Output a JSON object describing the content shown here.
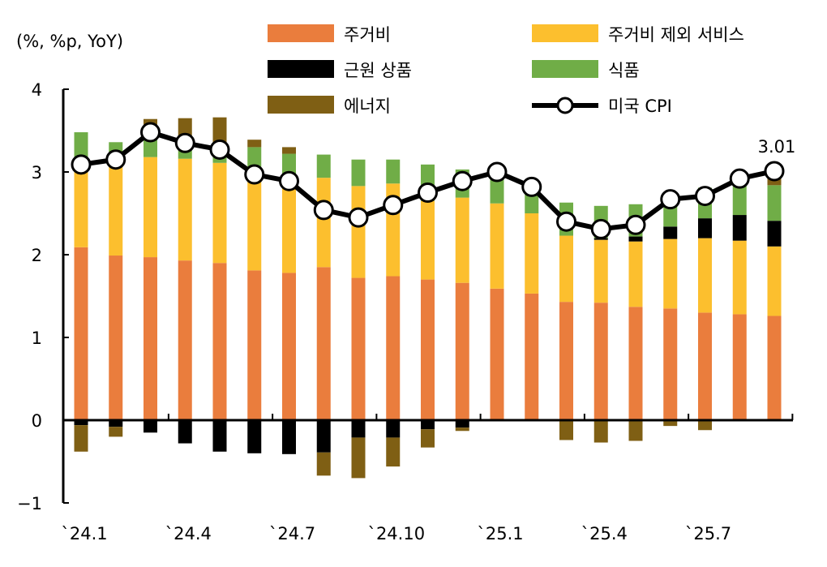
{
  "chart_data": {
    "type": "bar",
    "stacked": true,
    "ylabel": "(%, %p, YoY)",
    "ylim": [
      -1,
      4
    ],
    "yticks": [
      "4",
      "3",
      "2",
      "1",
      "0",
      "−1"
    ],
    "ytick_values": [
      4,
      3,
      2,
      1,
      0,
      -1
    ],
    "grid": false,
    "legend_position": "top",
    "categories": [
      "24.1",
      "24.2",
      "24.3",
      "24.4",
      "24.5",
      "24.6",
      "24.7",
      "24.8",
      "24.9",
      "24.10",
      "24.11",
      "24.12",
      "25.1",
      "25.2",
      "25.3",
      "25.4",
      "25.5",
      "25.6",
      "25.7",
      "25.8",
      "25.9"
    ],
    "xtick_labels": [
      "`24.1",
      "`24.4",
      "`24.7",
      "`24.10",
      "`25.1",
      "`25.4",
      "`25.7"
    ],
    "series": [
      {
        "name": "주거비",
        "color": "#EA7D3D",
        "values": [
          2.09,
          1.99,
          1.97,
          1.93,
          1.9,
          1.81,
          1.78,
          1.85,
          1.72,
          1.74,
          1.7,
          1.66,
          1.59,
          1.53,
          1.43,
          1.42,
          1.37,
          1.35,
          1.3,
          1.28,
          1.26
        ]
      },
      {
        "name": "주거비 제외 서비스",
        "color": "#FCBF2E",
        "values": [
          0.91,
          1.11,
          1.21,
          1.23,
          1.21,
          1.2,
          1.12,
          1.08,
          1.11,
          1.12,
          0.95,
          1.03,
          1.03,
          0.97,
          0.8,
          0.76,
          0.79,
          0.84,
          0.9,
          0.89,
          0.84
        ]
      },
      {
        "name": "근원 상품",
        "color": "#000000",
        "values": [
          -0.06,
          -0.08,
          -0.15,
          -0.28,
          -0.38,
          -0.4,
          -0.41,
          -0.39,
          -0.21,
          -0.21,
          -0.11,
          -0.09,
          0,
          0,
          0,
          0.02,
          0.06,
          0.15,
          0.24,
          0.31,
          0.31
        ]
      },
      {
        "name": "식품",
        "color": "#70AD47",
        "values": [
          0.48,
          0.26,
          0.32,
          0.17,
          0.2,
          0.29,
          0.32,
          0.28,
          0.32,
          0.29,
          0.44,
          0.34,
          0.38,
          0.3,
          0.4,
          0.39,
          0.39,
          0.32,
          0.37,
          0.44,
          0.43
        ]
      },
      {
        "name": "에너지",
        "color": "#7F5F14",
        "values": [
          -0.32,
          -0.12,
          0.14,
          0.32,
          0.35,
          0.09,
          0.08,
          -0.28,
          -0.49,
          -0.35,
          -0.22,
          -0.04,
          0,
          -0.01,
          -0.24,
          -0.27,
          -0.25,
          -0.07,
          -0.12,
          0,
          0.1
        ]
      }
    ],
    "line": {
      "name": "미국 CPI",
      "color": "#000000",
      "values": [
        3.09,
        3.15,
        3.48,
        3.35,
        3.27,
        2.97,
        2.89,
        2.54,
        2.45,
        2.6,
        2.75,
        2.89,
        3.0,
        2.82,
        2.4,
        2.31,
        2.36,
        2.67,
        2.71,
        2.92,
        3.01
      ]
    },
    "annotation": "3.01"
  }
}
